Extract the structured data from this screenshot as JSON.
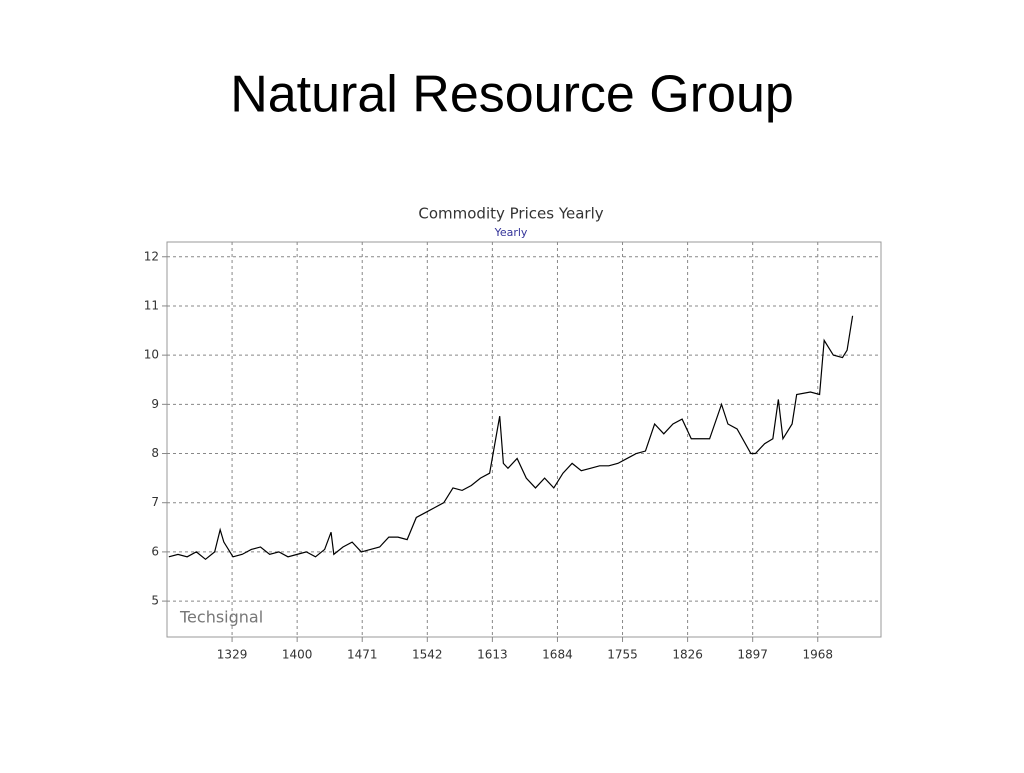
{
  "title": "Natural Resource Group",
  "chart_data": {
    "type": "line",
    "title": "Commodity Prices Yearly",
    "subtitle": "Yearly",
    "watermark": "Techsignal",
    "color": "#000000",
    "grid": true,
    "xlim": [
      1258,
      2037
    ],
    "ylim": [
      4.27,
      12.3
    ],
    "xticks": [
      1329,
      1400,
      1471,
      1542,
      1613,
      1684,
      1755,
      1826,
      1897,
      1968
    ],
    "yticks": [
      5,
      6,
      7,
      8,
      9,
      10,
      11,
      12
    ],
    "x": [
      1260,
      1270,
      1280,
      1290,
      1300,
      1310,
      1316,
      1320,
      1330,
      1340,
      1350,
      1360,
      1370,
      1380,
      1390,
      1400,
      1410,
      1420,
      1430,
      1437,
      1440,
      1450,
      1460,
      1470,
      1480,
      1490,
      1500,
      1510,
      1520,
      1530,
      1540,
      1550,
      1560,
      1570,
      1580,
      1590,
      1600,
      1610,
      1621,
      1625,
      1630,
      1640,
      1650,
      1660,
      1670,
      1680,
      1690,
      1700,
      1710,
      1720,
      1730,
      1740,
      1750,
      1760,
      1770,
      1780,
      1790,
      1800,
      1810,
      1820,
      1830,
      1840,
      1850,
      1863,
      1870,
      1880,
      1895,
      1900,
      1910,
      1919,
      1925,
      1930,
      1940,
      1945,
      1960,
      1970,
      1975,
      1985,
      1995,
      2000,
      2006
    ],
    "values": [
      5.9,
      5.95,
      5.9,
      6.0,
      5.85,
      6.0,
      6.45,
      6.2,
      5.9,
      5.95,
      6.05,
      6.1,
      5.95,
      6.0,
      5.9,
      5.95,
      6.0,
      5.9,
      6.05,
      6.4,
      5.95,
      6.1,
      6.2,
      6.0,
      6.05,
      6.1,
      6.3,
      6.3,
      6.25,
      6.7,
      6.8,
      6.9,
      7.0,
      7.3,
      7.25,
      7.35,
      7.5,
      7.6,
      8.76,
      7.8,
      7.7,
      7.9,
      7.5,
      7.3,
      7.5,
      7.3,
      7.6,
      7.8,
      7.65,
      7.7,
      7.75,
      7.75,
      7.8,
      7.9,
      8.0,
      8.05,
      8.6,
      8.4,
      8.6,
      8.7,
      8.3,
      8.3,
      8.3,
      9.0,
      8.6,
      8.5,
      8.0,
      8.0,
      8.2,
      8.3,
      9.1,
      8.3,
      8.6,
      9.2,
      9.25,
      9.2,
      10.3,
      10.0,
      9.95,
      10.1,
      10.8
    ]
  }
}
